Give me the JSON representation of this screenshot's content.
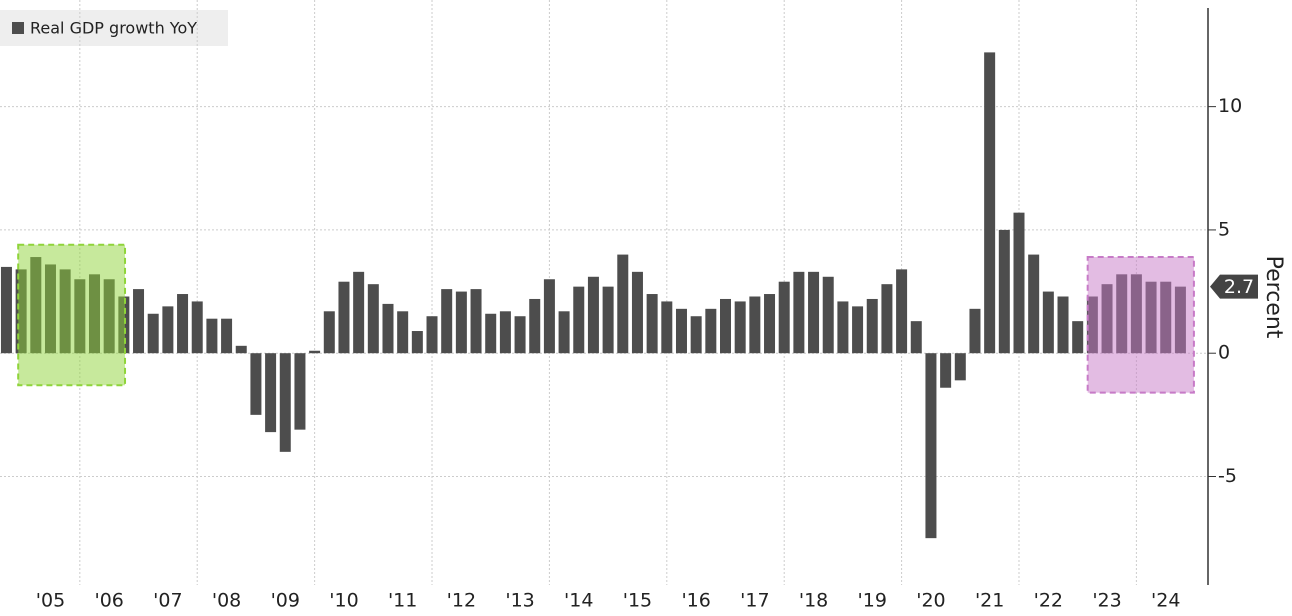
{
  "chart_data": {
    "type": "bar",
    "x": [
      2004.75,
      2005,
      2005.25,
      2005.5,
      2005.75,
      2006,
      2006.25,
      2006.5,
      2006.75,
      2007,
      2007.25,
      2007.5,
      2007.75,
      2008,
      2008.25,
      2008.5,
      2008.75,
      2009,
      2009.25,
      2009.5,
      2009.75,
      2010,
      2010.25,
      2010.5,
      2010.75,
      2011,
      2011.25,
      2011.5,
      2011.75,
      2012,
      2012.25,
      2012.5,
      2012.75,
      2013,
      2013.25,
      2013.5,
      2013.75,
      2014,
      2014.25,
      2014.5,
      2014.75,
      2015,
      2015.25,
      2015.5,
      2015.75,
      2016,
      2016.25,
      2016.5,
      2016.75,
      2017,
      2017.25,
      2017.5,
      2017.75,
      2018,
      2018.25,
      2018.5,
      2018.75,
      2019,
      2019.25,
      2019.5,
      2019.75,
      2020,
      2020.25,
      2020.5,
      2020.75,
      2021,
      2021.25,
      2021.5,
      2021.75,
      2022,
      2022.25,
      2022.5,
      2022.75,
      2023,
      2023.25,
      2023.5,
      2023.75,
      2024,
      2024.25,
      2024.5,
      2024.75
    ],
    "series": [
      {
        "name": "Real GDP growth YoY",
        "color": "#4d4d4d",
        "axis": "y2",
        "values": [
          3.5,
          3.4,
          3.9,
          3.6,
          3.4,
          3.0,
          3.2,
          3.0,
          2.3,
          2.6,
          1.6,
          1.9,
          2.4,
          2.1,
          1.4,
          1.4,
          0.3,
          -2.5,
          -3.2,
          -4.0,
          -3.1,
          0.1,
          1.7,
          2.9,
          3.3,
          2.8,
          2.0,
          1.7,
          0.9,
          1.5,
          2.6,
          2.5,
          2.6,
          1.6,
          1.7,
          1.5,
          2.2,
          3.0,
          1.7,
          2.7,
          3.1,
          2.7,
          4.0,
          3.3,
          2.4,
          2.1,
          1.8,
          1.5,
          1.8,
          2.2,
          2.1,
          2.3,
          2.4,
          2.9,
          3.3,
          3.3,
          3.1,
          2.1,
          1.9,
          2.2,
          2.8,
          3.4,
          1.3,
          -7.5,
          -1.4,
          -1.1,
          1.8,
          12.2,
          5.0,
          5.7,
          4.0,
          2.5,
          2.3,
          1.3,
          2.3,
          2.8,
          3.2,
          3.2,
          2.9,
          2.9,
          2.7
        ]
      }
    ],
    "xlim": [
      2004.64,
      2025.22
    ],
    "xticks": [
      {
        "value": 2005.5,
        "label": "'05"
      },
      {
        "value": 2006.5,
        "label": "'06"
      },
      {
        "value": 2007.5,
        "label": "'07"
      },
      {
        "value": 2008.5,
        "label": "'08"
      },
      {
        "value": 2009.5,
        "label": "'09"
      },
      {
        "value": 2010.5,
        "label": "'10"
      },
      {
        "value": 2011.5,
        "label": "'11"
      },
      {
        "value": 2012.5,
        "label": "'12"
      },
      {
        "value": 2013.5,
        "label": "'13"
      },
      {
        "value": 2014.5,
        "label": "'14"
      },
      {
        "value": 2015.5,
        "label": "'15"
      },
      {
        "value": 2016.5,
        "label": "'16"
      },
      {
        "value": 2017.5,
        "label": "'17"
      },
      {
        "value": 2018.5,
        "label": "'18"
      },
      {
        "value": 2019.5,
        "label": "'19"
      },
      {
        "value": 2020.5,
        "label": "'20"
      },
      {
        "value": 2021.5,
        "label": "'21"
      },
      {
        "value": 2022.5,
        "label": "'22"
      },
      {
        "value": 2023.5,
        "label": "'23"
      },
      {
        "value": 2024.5,
        "label": "'24"
      }
    ],
    "xgrid": [
      2006,
      2008,
      2010,
      2012,
      2014,
      2016,
      2018,
      2020,
      2022,
      2024
    ],
    "y2lim": [
      -9.4,
      14.0
    ],
    "y2ticks": [
      -5,
      0,
      5,
      10
    ],
    "y2label": "Percent",
    "grid": true,
    "legend": "top-left",
    "highlights": [
      {
        "x": [
          2004.95,
          2006.77
        ],
        "y": [
          -1.3,
          4.4
        ],
        "color": "#8fd43a"
      },
      {
        "x": [
          2023.17,
          2024.98
        ],
        "y": [
          -1.6,
          3.9
        ],
        "color": "#c77ac7"
      }
    ]
  }
}
